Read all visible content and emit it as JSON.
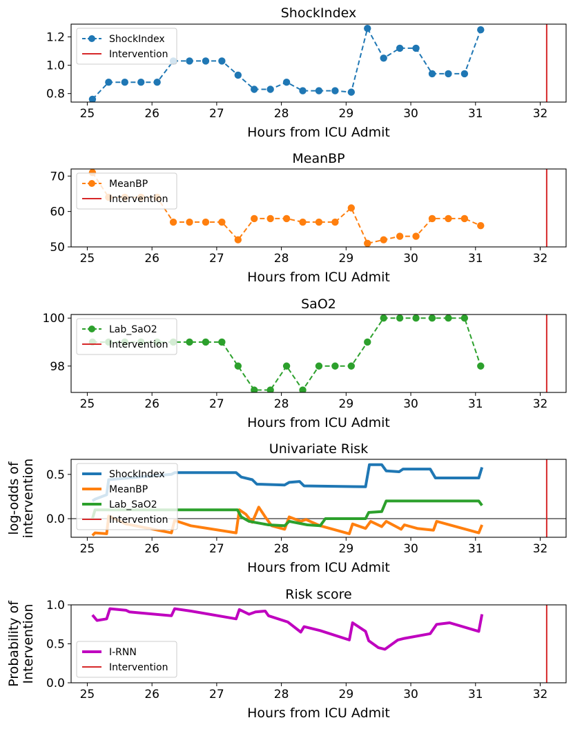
{
  "chart_data": [
    {
      "type": "line",
      "title": "ShockIndex",
      "xlabel": "Hours from ICU Admit",
      "ylabel": "",
      "xlim": [
        24.75,
        32.4
      ],
      "ylim": [
        0.74,
        1.29
      ],
      "xticks": [
        25,
        26,
        27,
        28,
        29,
        30,
        31,
        32
      ],
      "yticks": [
        0.8,
        1.0,
        1.2
      ],
      "ytick_labels": [
        "0.8",
        "1.0",
        "1.2"
      ],
      "legend": {
        "placement": "top-left",
        "entries": [
          "ShockIndex",
          "Intervention"
        ]
      },
      "series": [
        {
          "name": "ShockIndex",
          "color": "#1f77b4",
          "style": "dashed-markers",
          "x": [
            25.08,
            25.33,
            25.58,
            25.83,
            26.08,
            26.33,
            26.58,
            26.83,
            27.08,
            27.33,
            27.58,
            27.83,
            28.08,
            28.33,
            28.58,
            28.83,
            29.08,
            29.33,
            29.58,
            29.83,
            30.08,
            30.33,
            30.58,
            30.83,
            31.08
          ],
          "values": [
            0.76,
            0.88,
            0.88,
            0.88,
            0.88,
            1.03,
            1.03,
            1.03,
            1.03,
            0.93,
            0.83,
            0.83,
            0.88,
            0.82,
            0.82,
            0.82,
            0.81,
            1.26,
            1.05,
            1.12,
            1.12,
            0.94,
            0.94,
            0.94,
            1.25
          ]
        },
        {
          "name": "Intervention",
          "color": "#d62728",
          "style": "vline",
          "x": 32.1
        }
      ]
    },
    {
      "type": "line",
      "title": "MeanBP",
      "xlabel": "Hours from ICU Admit",
      "ylabel": "",
      "xlim": [
        24.75,
        32.4
      ],
      "ylim": [
        50,
        72
      ],
      "xticks": [
        25,
        26,
        27,
        28,
        29,
        30,
        31,
        32
      ],
      "yticks": [
        50,
        60,
        70
      ],
      "ytick_labels": [
        "50",
        "60",
        "70"
      ],
      "legend": {
        "placement": "top-left",
        "entries": [
          "MeanBP",
          "Intervention"
        ]
      },
      "series": [
        {
          "name": "MeanBP",
          "color": "#ff7f0e",
          "style": "dashed-markers",
          "x": [
            25.08,
            25.33,
            25.58,
            25.83,
            26.08,
            26.33,
            26.58,
            26.83,
            27.08,
            27.33,
            27.58,
            27.83,
            28.08,
            28.33,
            28.58,
            28.83,
            29.08,
            29.33,
            29.58,
            29.83,
            30.08,
            30.33,
            30.58,
            30.83,
            31.08
          ],
          "values": [
            71,
            64,
            64,
            64,
            64,
            57,
            57,
            57,
            57,
            52,
            58,
            58,
            58,
            57,
            57,
            57,
            61,
            51,
            52,
            53,
            53,
            58,
            58,
            58,
            56
          ]
        },
        {
          "name": "Intervention",
          "color": "#d62728",
          "style": "vline",
          "x": 32.1
        }
      ]
    },
    {
      "type": "line",
      "title": "SaO2",
      "xlabel": "Hours from ICU Admit",
      "ylabel": "",
      "xlim": [
        24.75,
        32.4
      ],
      "ylim": [
        96.9,
        100.15
      ],
      "xticks": [
        25,
        26,
        27,
        28,
        29,
        30,
        31,
        32
      ],
      "yticks": [
        98,
        100
      ],
      "ytick_labels": [
        "98",
        "100"
      ],
      "legend": {
        "placement": "top-left",
        "entries": [
          "Lab_SaO2",
          "Intervention"
        ]
      },
      "series": [
        {
          "name": "Lab_SaO2",
          "color": "#2ca02c",
          "style": "dashed-markers",
          "x": [
            25.08,
            25.33,
            25.58,
            25.83,
            26.08,
            26.33,
            26.58,
            26.83,
            27.08,
            27.33,
            27.58,
            27.83,
            28.08,
            28.33,
            28.58,
            28.83,
            29.08,
            29.33,
            29.58,
            29.83,
            30.08,
            30.33,
            30.58,
            30.83,
            31.08
          ],
          "values": [
            99,
            99,
            99,
            99,
            99,
            99,
            99,
            99,
            99,
            98,
            97,
            97,
            98,
            97,
            98,
            98,
            98,
            99,
            100,
            100,
            100,
            100,
            100,
            100,
            98
          ]
        },
        {
          "name": "Intervention",
          "color": "#d62728",
          "style": "vline",
          "x": 32.1
        }
      ]
    },
    {
      "type": "line",
      "title": "Univariate Risk",
      "xlabel": "Hours from ICU Admit",
      "ylabel": "log-odds of\nintervention",
      "xlim": [
        24.75,
        32.4
      ],
      "ylim": [
        -0.21,
        0.67
      ],
      "xticks": [
        25,
        26,
        27,
        28,
        29,
        30,
        31,
        32
      ],
      "yticks": [
        0.0,
        0.5
      ],
      "ytick_labels": [
        "0.0",
        "0.5"
      ],
      "hline": 0,
      "legend": {
        "placement": "top-left",
        "entries": [
          "ShockIndex",
          "MeanBP",
          "Lab_SaO2",
          "Intervention"
        ]
      },
      "series": [
        {
          "name": "ShockIndex",
          "color": "#1f77b4",
          "x": [
            25.08,
            25.12,
            25.3,
            25.33,
            26.3,
            26.35,
            27.3,
            27.38,
            27.55,
            27.62,
            28.05,
            28.12,
            28.28,
            28.35,
            29.3,
            29.36,
            29.55,
            29.62,
            29.82,
            29.88,
            30.3,
            30.38,
            31.05,
            31.1
          ],
          "values": [
            0.2,
            0.22,
            0.27,
            0.44,
            0.5,
            0.52,
            0.52,
            0.47,
            0.44,
            0.39,
            0.38,
            0.41,
            0.42,
            0.37,
            0.36,
            0.61,
            0.61,
            0.54,
            0.53,
            0.56,
            0.56,
            0.46,
            0.46,
            0.58
          ]
        },
        {
          "name": "MeanBP",
          "color": "#ff7f0e",
          "x": [
            25.08,
            25.12,
            25.3,
            25.33,
            25.6,
            26.3,
            26.35,
            26.6,
            27.3,
            27.35,
            27.45,
            27.55,
            27.65,
            27.75,
            27.85,
            28.05,
            28.12,
            28.3,
            28.38,
            28.6,
            29.05,
            29.1,
            29.3,
            29.38,
            29.55,
            29.62,
            29.85,
            29.9,
            30.1,
            30.35,
            30.4,
            31.05,
            31.1
          ],
          "values": [
            -0.19,
            -0.16,
            -0.17,
            0.03,
            -0.06,
            -0.16,
            -0.02,
            -0.08,
            -0.16,
            0.1,
            0.05,
            -0.04,
            0.13,
            0.02,
            -0.08,
            -0.12,
            0.02,
            -0.03,
            -0.01,
            -0.08,
            -0.17,
            -0.06,
            -0.11,
            -0.03,
            -0.09,
            -0.03,
            -0.12,
            -0.07,
            -0.11,
            -0.13,
            -0.03,
            -0.16,
            -0.07
          ]
        },
        {
          "name": "Lab_SaO2",
          "color": "#2ca02c",
          "x": [
            25.08,
            25.12,
            25.3,
            27.32,
            27.38,
            27.5,
            27.8,
            28.05,
            28.12,
            28.4,
            28.6,
            28.68,
            29.3,
            29.35,
            29.55,
            29.62,
            31.05,
            31.1
          ],
          "values": [
            0.0,
            0.1,
            0.1,
            0.1,
            0.02,
            -0.03,
            -0.07,
            -0.08,
            -0.03,
            -0.07,
            -0.08,
            0.0,
            0.0,
            0.07,
            0.08,
            0.2,
            0.2,
            0.15
          ]
        },
        {
          "name": "Intervention",
          "color": "#d62728",
          "style": "vline",
          "x": 32.1
        }
      ]
    },
    {
      "type": "line",
      "title": "Risk score",
      "xlabel": "Hours from ICU Admit",
      "ylabel": "Probability of\nIntervention",
      "xlim": [
        24.75,
        32.4
      ],
      "ylim": [
        0.0,
        1.0
      ],
      "xticks": [
        25,
        26,
        27,
        28,
        29,
        30,
        31,
        32
      ],
      "yticks": [
        0.0,
        0.5,
        1.0
      ],
      "ytick_labels": [
        "0.0",
        "0.5",
        "1.0"
      ],
      "legend": {
        "placement": "bottom-left",
        "entries": [
          "I-RNN",
          "Intervention"
        ]
      },
      "series": [
        {
          "name": "I-RNN",
          "color": "#bf00bf",
          "x": [
            25.08,
            25.15,
            25.3,
            25.35,
            25.6,
            25.65,
            26.3,
            26.35,
            26.6,
            27.3,
            27.35,
            27.5,
            27.6,
            27.75,
            27.8,
            28.1,
            28.3,
            28.35,
            28.6,
            29.05,
            29.1,
            29.3,
            29.35,
            29.5,
            29.6,
            29.8,
            29.9,
            30.3,
            30.4,
            30.6,
            31.05,
            31.1
          ],
          "values": [
            0.87,
            0.8,
            0.82,
            0.95,
            0.93,
            0.91,
            0.86,
            0.95,
            0.92,
            0.82,
            0.94,
            0.88,
            0.91,
            0.92,
            0.86,
            0.78,
            0.65,
            0.72,
            0.67,
            0.55,
            0.77,
            0.66,
            0.54,
            0.45,
            0.43,
            0.55,
            0.57,
            0.63,
            0.75,
            0.77,
            0.66,
            0.88
          ]
        },
        {
          "name": "Intervention",
          "color": "#d62728",
          "style": "vline",
          "x": 32.1
        }
      ]
    }
  ]
}
